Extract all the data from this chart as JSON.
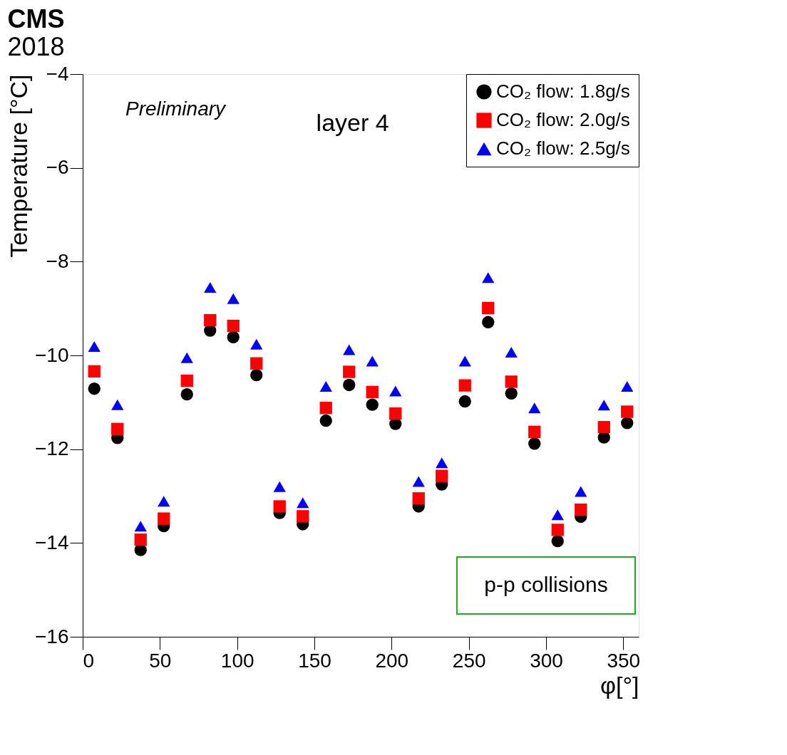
{
  "chart_data": {
    "type": "scatter",
    "title": "CMS",
    "subtitle": "2018",
    "xlabel": "φ[°]",
    "ylabel": "Temperature [°C]",
    "annotations": [
      "Preliminary",
      "layer 4",
      "p-p collisions"
    ],
    "x": [
      7.5,
      22.5,
      37.5,
      52.5,
      67.5,
      82.5,
      97.5,
      112.5,
      127.5,
      142.5,
      157.5,
      172.5,
      187.5,
      202.5,
      217.5,
      232.5,
      247.5,
      262.5,
      277.5,
      292.5,
      307.5,
      322.5,
      337.5,
      352.5
    ],
    "series": [
      {
        "name": "CO₂ flow: 1.8g/s",
        "color": "#000000",
        "marker": "circle",
        "values": [
          -10.71,
          -11.76,
          -14.15,
          -13.64,
          -10.83,
          -9.47,
          -9.61,
          -10.42,
          -13.36,
          -13.6,
          -11.39,
          -10.63,
          -11.05,
          -11.46,
          -13.22,
          -12.75,
          -10.98,
          -9.29,
          -10.81,
          -11.88,
          -13.96,
          -13.44,
          -11.75,
          -11.44
        ]
      },
      {
        "name": "CO₂ flow: 2.0g/s",
        "color": "#ff0000",
        "marker": "square",
        "values": [
          -10.34,
          -11.57,
          -13.93,
          -13.48,
          -10.54,
          -9.25,
          -9.37,
          -10.17,
          -13.22,
          -13.43,
          -11.12,
          -10.35,
          -10.78,
          -11.24,
          -13.05,
          -12.57,
          -10.64,
          -8.99,
          -10.56,
          -11.63,
          -13.72,
          -13.29,
          -11.53,
          -11.2
        ]
      },
      {
        "name": "CO₂ flow: 2.5g/s",
        "color": "#0000ff",
        "marker": "triangle",
        "values": [
          -9.81,
          -11.05,
          -13.64,
          -13.11,
          -10.05,
          -8.55,
          -8.79,
          -9.76,
          -12.8,
          -13.14,
          -10.66,
          -9.88,
          -10.12,
          -10.76,
          -12.69,
          -12.29,
          -10.12,
          -8.34,
          -9.93,
          -11.12,
          -13.4,
          -12.9,
          -11.06,
          -10.66
        ]
      }
    ],
    "xlim": [
      0,
      360
    ],
    "xticks": [
      0,
      50,
      100,
      150,
      200,
      250,
      300,
      350
    ],
    "ylim": [
      -16,
      -4
    ],
    "yticks": [
      -16,
      -14,
      -12,
      -10,
      -8,
      -6,
      -4
    ],
    "grid": false,
    "legend": "top right"
  }
}
